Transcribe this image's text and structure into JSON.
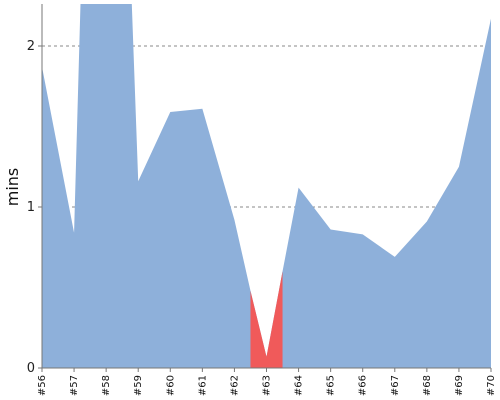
{
  "chart_data": {
    "type": "area",
    "ylabel": "mins",
    "ylim": [
      0,
      2.25
    ],
    "y_ticks": [
      "0",
      "1",
      "2"
    ],
    "grid": "horizontal dashed at major y ticks",
    "categories": [
      "#56",
      "#57",
      "#58",
      "#59",
      "#60",
      "#61",
      "#62",
      "#63",
      "#64",
      "#65",
      "#66",
      "#67",
      "#68",
      "#69",
      "#70"
    ],
    "area_points": [
      {
        "x": 0,
        "y": 1.87
      },
      {
        "x": 1,
        "y": 0.84
      },
      {
        "x": 1.2,
        "y": 2.3
      },
      {
        "x": 2.8,
        "y": 2.3
      },
      {
        "x": 3,
        "y": 1.16
      },
      {
        "x": 4,
        "y": 1.59
      },
      {
        "x": 4.5,
        "y": 1.6
      },
      {
        "x": 5,
        "y": 1.61
      },
      {
        "x": 6,
        "y": 0.92
      },
      {
        "x": 6.5,
        "y": 0.48
      },
      {
        "x": 7,
        "y": 0.07
      },
      {
        "x": 7.5,
        "y": 0.6
      },
      {
        "x": 8,
        "y": 1.12
      },
      {
        "x": 9,
        "y": 0.86
      },
      {
        "x": 10,
        "y": 0.83
      },
      {
        "x": 11,
        "y": 0.69
      },
      {
        "x": 12,
        "y": 0.91
      },
      {
        "x": 13,
        "y": 1.25
      },
      {
        "x": 14,
        "y": 2.17
      }
    ],
    "highlight_range": [
      6.5,
      7.5
    ],
    "colors": {
      "area": "#8eb0da",
      "highlight": "#f05a5a",
      "grid": "#888888",
      "axis": "#777777"
    }
  }
}
